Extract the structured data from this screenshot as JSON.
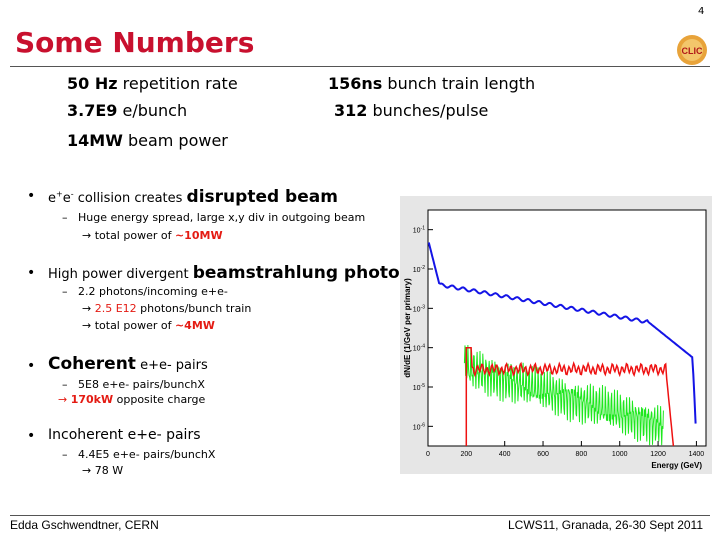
{
  "page_number": "4",
  "title": "Some Numbers",
  "stats": {
    "rep_rate_val": "50 Hz",
    "rep_rate_text": "repetition rate",
    "e_bunch_val": "3.7E9",
    "e_bunch_text": "e/bunch",
    "beam_power_val": "14MW",
    "beam_power_text": "beam power",
    "train_len_val": "156ns",
    "train_len_text": "bunch train length",
    "bunches_val": "312",
    "bunches_text": "bunches/pulse"
  },
  "bullets": {
    "b1_pre": "e",
    "b1_sup1": "+",
    "b1_mid": "e",
    "b1_sup2": "-",
    "b1_text": " collision creates ",
    "b1_emph": "disrupted beam",
    "b1_sub1": "Huge energy spread, large x,y div in outgoing beam",
    "b1_sub2_pre": " total power of ",
    "b1_sub2_val": "~10MW",
    "b2_text": "High power divergent ",
    "b2_emph": "beamstrahlung photons",
    "b2_sub1": "2.2 photons/incoming e+e-",
    "b2_sub2_val": "2.5 E12",
    "b2_sub2_text": " photons/bunch train",
    "b2_sub3_pre": " total power of ",
    "b2_sub3_val": "~4MW",
    "b3_emph": "Coherent",
    "b3_text": " e+e- pairs",
    "b3_sub1": "5E8 e+e- pairs/bunchX",
    "b3_sub2_val": "170kW",
    "b3_sub2_text": " opposite charge",
    "b4_text": "Incoherent e+e- pairs",
    "b4_sub1": "4.4E5 e+e- pairs/bunchX",
    "b4_sub2": " 78 W"
  },
  "plot": {
    "ylabel": "dN/dE (1/GeV per primary)",
    "xlabel": "Energy (GeV)",
    "xticks": [
      "0",
      "200",
      "400",
      "600",
      "800",
      "1000",
      "1200",
      "1400"
    ],
    "yticks": [
      {
        "base": "10",
        "exp": "-1"
      },
      {
        "base": "10",
        "exp": "-2"
      },
      {
        "base": "10",
        "exp": "-3"
      },
      {
        "base": "10",
        "exp": "-4"
      },
      {
        "base": "10",
        "exp": "-5"
      },
      {
        "base": "10",
        "exp": "-6"
      }
    ],
    "colors": {
      "blue": "#1414e6",
      "red": "#ee1111",
      "green": "#1ee81e"
    }
  },
  "logo": {
    "text": "CLIC"
  },
  "footer": {
    "left": "Edda Gschwendtner, CERN",
    "right": "LCWS11, Granada, 26-30 Sept 2011"
  }
}
